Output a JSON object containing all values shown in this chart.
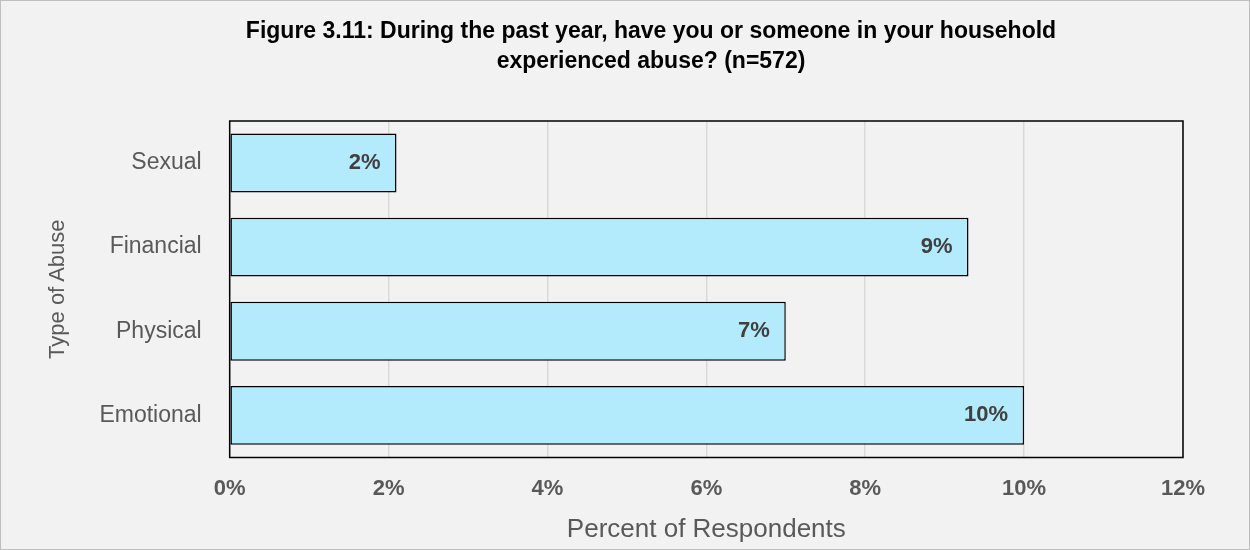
{
  "chart_data": {
    "type": "bar",
    "orientation": "horizontal",
    "title": "Figure 3.11: During the past year, have you or someone in your household experienced abuse? (n=572)",
    "xlabel": "Percent of Respondents",
    "ylabel": "Type of Abuse",
    "categories": [
      "Sexual",
      "Financial",
      "Physical",
      "Emotional"
    ],
    "values": [
      2.1,
      9.3,
      7.0,
      10.0
    ],
    "value_labels": [
      "2%",
      "9%",
      "7%",
      "10%"
    ],
    "color": "#b3ebfd",
    "xlim": [
      0,
      12
    ],
    "xticks": [
      {
        "value": 0,
        "label": "0%"
      },
      {
        "value": 2,
        "label": "2%"
      },
      {
        "value": 4,
        "label": "4%"
      },
      {
        "value": 6,
        "label": "6%"
      },
      {
        "value": 8,
        "label": "8%"
      },
      {
        "value": 10,
        "label": "10%"
      },
      {
        "value": 12,
        "label": "12%"
      }
    ],
    "grid": "x",
    "legend": false
  }
}
